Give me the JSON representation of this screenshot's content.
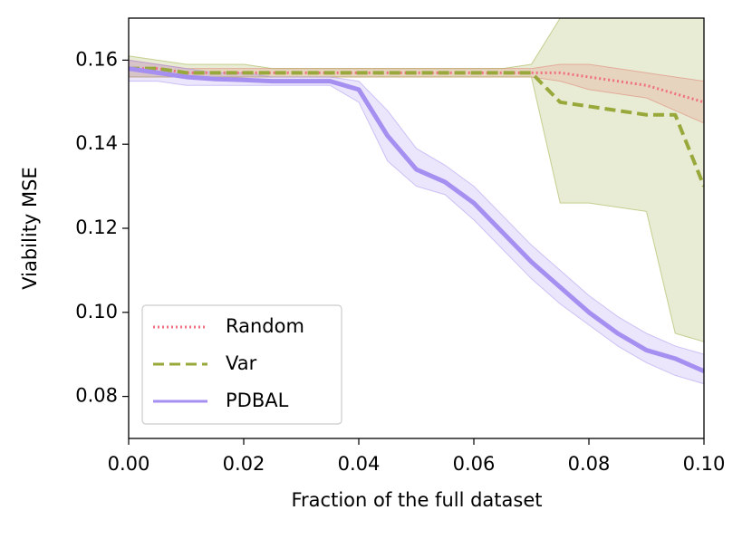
{
  "chart_data": {
    "type": "line",
    "x_label": "Fraction of the full dataset",
    "y_label": "Viability MSE",
    "x": [
      0,
      0.005,
      0.01,
      0.015,
      0.02,
      0.025,
      0.03,
      0.035,
      0.04,
      0.045,
      0.05,
      0.055,
      0.06,
      0.065,
      0.07,
      0.075,
      0.08,
      0.085,
      0.09,
      0.095,
      0.1
    ],
    "series": [
      {
        "name": "Random",
        "color": "#f0707f",
        "dash": "dotted",
        "values": [
          0.158,
          0.158,
          0.157,
          0.157,
          0.157,
          0.157,
          0.157,
          0.157,
          0.157,
          0.157,
          0.157,
          0.157,
          0.157,
          0.157,
          0.157,
          0.157,
          0.156,
          0.155,
          0.154,
          0.152,
          0.15
        ],
        "lower": [
          0.156,
          0.156,
          0.156,
          0.156,
          0.156,
          0.156,
          0.156,
          0.156,
          0.156,
          0.156,
          0.156,
          0.156,
          0.156,
          0.156,
          0.156,
          0.155,
          0.153,
          0.152,
          0.151,
          0.148,
          0.145
        ],
        "upper": [
          0.16,
          0.159,
          0.158,
          0.158,
          0.158,
          0.158,
          0.158,
          0.158,
          0.158,
          0.158,
          0.158,
          0.158,
          0.158,
          0.158,
          0.158,
          0.159,
          0.159,
          0.158,
          0.157,
          0.156,
          0.155
        ]
      },
      {
        "name": "Var",
        "color": "#99a83a",
        "dash": "dashed",
        "values": [
          0.158,
          0.158,
          0.157,
          0.157,
          0.157,
          0.157,
          0.157,
          0.157,
          0.157,
          0.157,
          0.157,
          0.157,
          0.157,
          0.157,
          0.157,
          0.15,
          0.149,
          0.148,
          0.147,
          0.147,
          0.13
        ],
        "lower": [
          0.156,
          0.156,
          0.156,
          0.156,
          0.156,
          0.156,
          0.156,
          0.156,
          0.156,
          0.156,
          0.156,
          0.156,
          0.156,
          0.156,
          0.156,
          0.126,
          0.126,
          0.125,
          0.124,
          0.095,
          0.093
        ],
        "upper": [
          0.161,
          0.16,
          0.159,
          0.159,
          0.159,
          0.158,
          0.158,
          0.158,
          0.158,
          0.158,
          0.158,
          0.158,
          0.158,
          0.158,
          0.159,
          0.17,
          0.17,
          0.17,
          0.17,
          0.17,
          0.17
        ]
      },
      {
        "name": "PDBAL",
        "color": "#a58ff0",
        "dash": "solid",
        "values": [
          0.158,
          0.157,
          0.156,
          0.1555,
          0.1553,
          0.155,
          0.155,
          0.155,
          0.153,
          0.142,
          0.134,
          0.131,
          0.126,
          0.119,
          0.112,
          0.106,
          0.1,
          0.095,
          0.091,
          0.089,
          0.086
        ],
        "lower": [
          0.155,
          0.155,
          0.154,
          0.154,
          0.154,
          0.154,
          0.154,
          0.154,
          0.15,
          0.136,
          0.13,
          0.128,
          0.122,
          0.115,
          0.108,
          0.102,
          0.097,
          0.092,
          0.088,
          0.085,
          0.083
        ],
        "upper": [
          0.16,
          0.159,
          0.158,
          0.157,
          0.157,
          0.156,
          0.156,
          0.156,
          0.155,
          0.148,
          0.139,
          0.135,
          0.13,
          0.123,
          0.116,
          0.11,
          0.104,
          0.099,
          0.095,
          0.092,
          0.09
        ]
      }
    ],
    "xlim": [
      0,
      0.1
    ],
    "ylim": [
      0.07,
      0.17
    ],
    "xticks": [
      {
        "value": 0,
        "label": "0.00"
      },
      0.02,
      0.04,
      0.06,
      0.08,
      {
        "value": 0.1,
        "label": "0.10"
      }
    ],
    "yticks": [
      0.08,
      {
        "value": 0.1,
        "label": "0.10"
      },
      0.12,
      0.14,
      0.16
    ],
    "grid": false,
    "legend": "lower left"
  }
}
